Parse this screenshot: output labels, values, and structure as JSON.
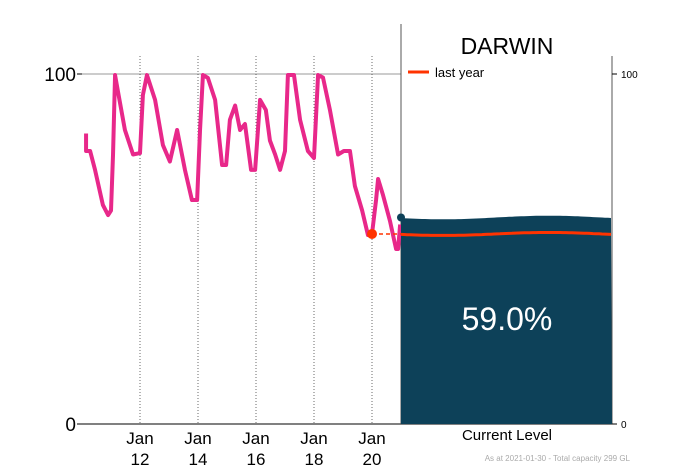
{
  "chart_data": {
    "type": "line",
    "title": "DARWIN",
    "xlabel": "",
    "ylabel": "",
    "ylim": [
      0,
      100
    ],
    "xlim_day": [
      10,
      21
    ],
    "x_ticks": [
      {
        "day": 12,
        "line1": "Jan",
        "line2": "12"
      },
      {
        "day": 14,
        "line1": "Jan",
        "line2": "14"
      },
      {
        "day": 16,
        "line1": "Jan",
        "line2": "16"
      },
      {
        "day": 18,
        "line1": "Jan",
        "line2": "18"
      },
      {
        "day": 20,
        "line1": "Jan",
        "line2": "20"
      }
    ],
    "y_ticks": [
      {
        "v": 0,
        "label": "0"
      },
      {
        "v": 100,
        "label": "100"
      }
    ],
    "right_y_ticks": [
      {
        "v": 0,
        "label": "0"
      },
      {
        "v": 100,
        "label": "100"
      }
    ],
    "series": [
      {
        "name": "level",
        "color": "#e8288a",
        "x": [
          10.14,
          10.14,
          10.28,
          10.45,
          10.72,
          10.9,
          11.0,
          11.07,
          11.14,
          11.24,
          11.48,
          11.76,
          12.0,
          12.1,
          12.24,
          12.52,
          12.79,
          13.03,
          13.28,
          13.55,
          13.79,
          13.97,
          14.07,
          14.17,
          14.34,
          14.59,
          14.83,
          14.97,
          15.1,
          15.28,
          15.45,
          15.62,
          15.83,
          15.97,
          16.14,
          16.34,
          16.48,
          16.66,
          16.83,
          17.0,
          17.1,
          17.31,
          17.52,
          17.79,
          18.0,
          18.14,
          18.31,
          18.55,
          18.83,
          19.03,
          19.24,
          19.41,
          19.66,
          19.86,
          20.0,
          20.14,
          20.21,
          20.38,
          20.62,
          20.83,
          20.9,
          20.97
        ],
        "y": [
          83,
          78,
          78,
          72.6,
          62.6,
          59.7,
          61,
          77,
          99.7,
          95,
          84,
          77,
          77.4,
          94,
          99.7,
          92.6,
          79.7,
          75,
          84,
          72.6,
          64,
          64,
          84,
          99.7,
          98.9,
          92.6,
          74,
          74,
          86.9,
          91,
          84,
          85.7,
          72.6,
          72.6,
          92.6,
          89.7,
          81,
          77,
          72.6,
          78,
          99.7,
          99.7,
          86.9,
          78,
          76,
          99.7,
          99,
          89.7,
          77,
          78,
          78,
          68,
          61,
          54,
          54.3,
          64,
          70,
          65.4,
          58,
          50,
          50,
          57
        ]
      }
    ],
    "last_year_marker": {
      "day": 20,
      "value": 54.3,
      "color": "#ff3300"
    },
    "legend": {
      "label": "last year",
      "color": "#ff3300",
      "placement": "top-left of gauge"
    },
    "gauge": {
      "label": "Current Level",
      "value": 59.0,
      "value_label": "59.0%",
      "last_year": 54.3,
      "fill": "#0d4159"
    },
    "footnote": "As at 2021-01-30 - Total capacity 299 GL"
  }
}
